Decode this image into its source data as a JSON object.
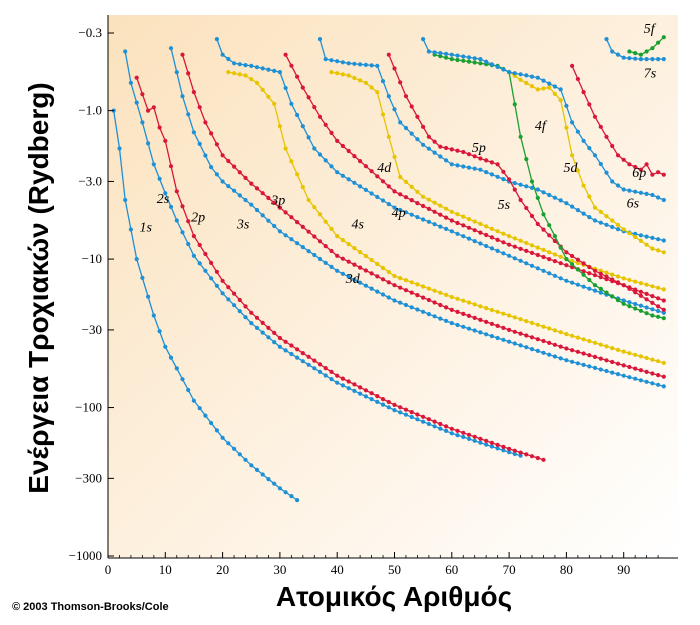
{
  "credit": "© 2003 Thomson-Brooks/Cole",
  "chart_data": {
    "type": "line",
    "title": "",
    "xlabel": "Ατομικός Αριθμός",
    "ylabel": "Ενέργεια Τροχιακών (Rydberg)",
    "xlim": [
      0,
      97
    ],
    "ylim": [
      -1000,
      -0.3
    ],
    "y_scale": "log-magnitude",
    "x_ticks": [
      0,
      10,
      20,
      30,
      40,
      50,
      60,
      70,
      80,
      90
    ],
    "y_ticks": [
      -0.3,
      -1.0,
      -3.0,
      -10,
      -30,
      -100,
      -300,
      -1000
    ],
    "y_tick_labels": [
      "−0.3",
      "−1.0",
      "−3.0",
      "−10",
      "−30",
      "−100",
      "−300",
      "−1000"
    ],
    "colors": {
      "s": "#1e90d6",
      "p": "#d8173a",
      "d": "#e6c400",
      "f": "#1aa031"
    },
    "series": [
      {
        "name": "1s",
        "type": "s",
        "points": [
          [
            1,
            -1.0
          ],
          [
            2,
            -1.8
          ],
          [
            3,
            -4.0
          ],
          [
            5,
            -10
          ],
          [
            8,
            -24
          ],
          [
            10,
            -39
          ],
          [
            15,
            -90
          ],
          [
            20,
            -160
          ],
          [
            25,
            -245
          ],
          [
            30,
            -350
          ],
          [
            33,
            -420
          ]
        ]
      },
      {
        "name": "2s",
        "type": "s",
        "points": [
          [
            3,
            -0.4
          ],
          [
            4,
            -0.65
          ],
          [
            6,
            -1.2
          ],
          [
            8,
            -2.3
          ],
          [
            10,
            -3.6
          ],
          [
            12,
            -5.5
          ],
          [
            15,
            -9.5
          ],
          [
            20,
            -17
          ],
          [
            25,
            -27
          ],
          [
            30,
            -39
          ],
          [
            40,
            -68
          ],
          [
            50,
            -104
          ],
          [
            60,
            -149
          ],
          [
            70,
            -200
          ],
          [
            72,
            -211
          ]
        ]
      },
      {
        "name": "2p",
        "type": "p",
        "points": [
          [
            5,
            -0.6
          ],
          [
            7,
            -1.0
          ],
          [
            8,
            -0.95
          ],
          [
            9,
            -1.3
          ],
          [
            10,
            -1.6
          ],
          [
            12,
            -3.5
          ],
          [
            15,
            -7.0
          ],
          [
            20,
            -14
          ],
          [
            25,
            -23
          ],
          [
            30,
            -34
          ],
          [
            40,
            -61
          ],
          [
            50,
            -96
          ],
          [
            60,
            -139
          ],
          [
            70,
            -190
          ],
          [
            76,
            -225
          ]
        ]
      },
      {
        "name": "3s",
        "type": "s",
        "points": [
          [
            11,
            -0.38
          ],
          [
            13,
            -0.8
          ],
          [
            15,
            -1.4
          ],
          [
            18,
            -2.4
          ],
          [
            20,
            -3.0
          ],
          [
            25,
            -4.3
          ],
          [
            30,
            -6.5
          ],
          [
            40,
            -12
          ],
          [
            50,
            -19
          ],
          [
            60,
            -27
          ],
          [
            70,
            -36
          ],
          [
            80,
            -48
          ],
          [
            90,
            -61
          ],
          [
            97,
            -72
          ]
        ]
      },
      {
        "name": "3p",
        "type": "p",
        "points": [
          [
            13,
            -0.42
          ],
          [
            15,
            -0.75
          ],
          [
            17,
            -1.2
          ],
          [
            20,
            -2.0
          ],
          [
            25,
            -3.1
          ],
          [
            30,
            -4.5
          ],
          [
            40,
            -9.5
          ],
          [
            50,
            -15
          ],
          [
            60,
            -22
          ],
          [
            70,
            -30
          ],
          [
            80,
            -40
          ],
          [
            90,
            -52
          ],
          [
            97,
            -62
          ]
        ]
      },
      {
        "name": "3d",
        "type": "d",
        "points": [
          [
            21,
            -0.55
          ],
          [
            24,
            -0.58
          ],
          [
            26,
            -0.65
          ],
          [
            29,
            -0.9
          ],
          [
            31,
            -1.8
          ],
          [
            35,
            -4.0
          ],
          [
            40,
            -7.0
          ],
          [
            50,
            -13
          ],
          [
            60,
            -18
          ],
          [
            70,
            -24
          ],
          [
            80,
            -32
          ],
          [
            90,
            -42
          ],
          [
            97,
            -50
          ]
        ]
      },
      {
        "name": "4s",
        "type": "s",
        "points": [
          [
            19,
            -0.33
          ],
          [
            20,
            -0.42
          ],
          [
            22,
            -0.48
          ],
          [
            25,
            -0.5
          ],
          [
            30,
            -0.55
          ],
          [
            32,
            -0.9
          ],
          [
            36,
            -1.8
          ],
          [
            40,
            -2.6
          ],
          [
            50,
            -4.5
          ],
          [
            60,
            -6.5
          ],
          [
            70,
            -9.5
          ],
          [
            80,
            -14
          ],
          [
            90,
            -19
          ],
          [
            97,
            -23
          ]
        ]
      },
      {
        "name": "4p",
        "type": "p",
        "points": [
          [
            31,
            -0.42
          ],
          [
            34,
            -0.7
          ],
          [
            37,
            -1.1
          ],
          [
            40,
            -1.6
          ],
          [
            50,
            -3.5
          ],
          [
            60,
            -5.5
          ],
          [
            70,
            -8.0
          ],
          [
            80,
            -11
          ],
          [
            90,
            -15
          ],
          [
            97,
            -19
          ]
        ]
      },
      {
        "name": "4d",
        "type": "d",
        "points": [
          [
            39,
            -0.55
          ],
          [
            42,
            -0.58
          ],
          [
            45,
            -0.65
          ],
          [
            47,
            -0.75
          ],
          [
            49,
            -1.5
          ],
          [
            51,
            -2.8
          ],
          [
            55,
            -3.8
          ],
          [
            60,
            -4.8
          ],
          [
            70,
            -7.0
          ],
          [
            80,
            -10
          ],
          [
            90,
            -13.5
          ],
          [
            97,
            -16
          ]
        ]
      },
      {
        "name": "5s",
        "type": "s",
        "points": [
          [
            37,
            -0.33
          ],
          [
            38,
            -0.45
          ],
          [
            42,
            -0.48
          ],
          [
            47,
            -0.5
          ],
          [
            49,
            -0.8
          ],
          [
            51,
            -1.2
          ],
          [
            55,
            -1.7
          ],
          [
            60,
            -2.3
          ],
          [
            65,
            -2.5
          ],
          [
            70,
            -3.0
          ],
          [
            75,
            -3.4
          ],
          [
            80,
            -4.2
          ],
          [
            85,
            -5.5
          ],
          [
            90,
            -6.5
          ],
          [
            97,
            -7.5
          ]
        ]
      },
      {
        "name": "5p",
        "type": "p",
        "points": [
          [
            49,
            -0.42
          ],
          [
            52,
            -0.8
          ],
          [
            54,
            -1.1
          ],
          [
            56,
            -1.5
          ],
          [
            58,
            -1.75
          ],
          [
            62,
            -1.9
          ],
          [
            65,
            -2.1
          ],
          [
            68,
            -2.3
          ],
          [
            70,
            -2.9
          ],
          [
            72,
            -4.0
          ],
          [
            75,
            -5.8
          ],
          [
            80,
            -9.0
          ],
          [
            85,
            -12
          ],
          [
            90,
            -15
          ],
          [
            97,
            -22
          ]
        ]
      },
      {
        "name": "4f",
        "type": "f",
        "points": [
          [
            57,
            -0.42
          ],
          [
            60,
            -0.45
          ],
          [
            65,
            -0.48
          ],
          [
            68,
            -0.5
          ],
          [
            70,
            -0.55
          ],
          [
            72,
            -1.5
          ],
          [
            74,
            -3.0
          ],
          [
            76,
            -5.0
          ],
          [
            78,
            -7.0
          ],
          [
            80,
            -10
          ],
          [
            85,
            -15
          ],
          [
            90,
            -20
          ],
          [
            95,
            -24
          ],
          [
            97,
            -25
          ]
        ]
      },
      {
        "name": "5d",
        "type": "d",
        "points": [
          [
            70,
            -0.55
          ],
          [
            72,
            -0.62
          ],
          [
            75,
            -0.72
          ],
          [
            77,
            -0.7
          ],
          [
            79,
            -0.85
          ],
          [
            81,
            -2.0
          ],
          [
            83,
            -3.2
          ],
          [
            85,
            -4.5
          ],
          [
            88,
            -5.5
          ],
          [
            90,
            -6.3
          ],
          [
            95,
            -8.5
          ],
          [
            97,
            -9.0
          ]
        ]
      },
      {
        "name": "6s",
        "type": "s",
        "points": [
          [
            55,
            -0.33
          ],
          [
            56,
            -0.4
          ],
          [
            60,
            -0.42
          ],
          [
            65,
            -0.45
          ],
          [
            70,
            -0.55
          ],
          [
            75,
            -0.6
          ],
          [
            79,
            -0.72
          ],
          [
            81,
            -1.2
          ],
          [
            83,
            -1.6
          ],
          [
            85,
            -2.0
          ],
          [
            88,
            -3.0
          ],
          [
            90,
            -3.4
          ],
          [
            95,
            -3.7
          ],
          [
            97,
            -4.0
          ]
        ]
      },
      {
        "name": "6p",
        "type": "p",
        "points": [
          [
            81,
            -0.5
          ],
          [
            83,
            -0.75
          ],
          [
            85,
            -1.1
          ],
          [
            87,
            -1.5
          ],
          [
            89,
            -2.0
          ],
          [
            91,
            -2.3
          ],
          [
            93,
            -2.5
          ],
          [
            94,
            -2.3
          ],
          [
            95,
            -2.7
          ],
          [
            96,
            -2.6
          ],
          [
            97,
            -2.7
          ]
        ]
      },
      {
        "name": "5f",
        "type": "f",
        "points": [
          [
            91,
            -0.4
          ],
          [
            93,
            -0.42
          ],
          [
            95,
            -0.38
          ],
          [
            97,
            -0.32
          ]
        ]
      },
      {
        "name": "7s",
        "type": "s",
        "points": [
          [
            87,
            -0.33
          ],
          [
            88,
            -0.4
          ],
          [
            90,
            -0.44
          ],
          [
            93,
            -0.45
          ],
          [
            97,
            -0.45
          ]
        ]
      }
    ],
    "labels": [
      {
        "text": "1s",
        "x": 5.5,
        "y": -6.5
      },
      {
        "text": "2s",
        "x": 8.5,
        "y": -4.2
      },
      {
        "text": "2p",
        "x": 14.5,
        "y": -5.6
      },
      {
        "text": "3s",
        "x": 22.5,
        "y": -6.2
      },
      {
        "text": "3p",
        "x": 28.5,
        "y": -4.3
      },
      {
        "text": "3d",
        "x": 41.5,
        "y": -14.5
      },
      {
        "text": "4s",
        "x": 42.5,
        "y": -6.2
      },
      {
        "text": "4p",
        "x": 49.5,
        "y": -5.2
      },
      {
        "text": "4d",
        "x": 47.0,
        "y": -2.6
      },
      {
        "text": "5s",
        "x": 68.0,
        "y": -4.6
      },
      {
        "text": "5p",
        "x": 63.5,
        "y": -1.9
      },
      {
        "text": "4f",
        "x": 74.5,
        "y": -1.35
      },
      {
        "text": "5d",
        "x": 79.5,
        "y": -2.6
      },
      {
        "text": "6p",
        "x": 91.5,
        "y": -2.8
      },
      {
        "text": "6s",
        "x": 90.5,
        "y": -4.5
      },
      {
        "text": "5f",
        "x": 93.5,
        "y": -0.3
      },
      {
        "text": "7s",
        "x": 93.5,
        "y": -0.6
      }
    ]
  }
}
